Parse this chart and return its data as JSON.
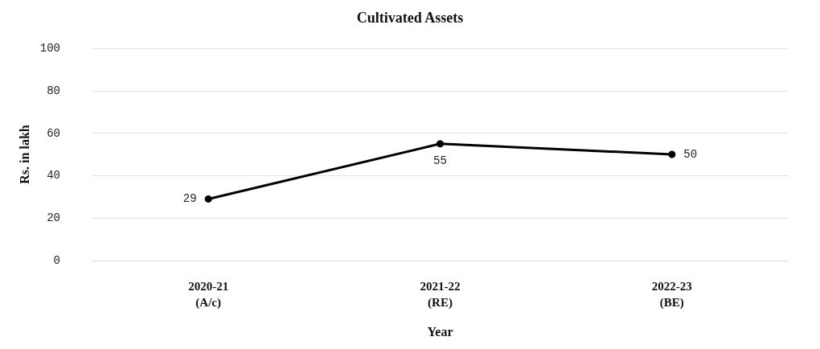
{
  "chart_data": {
    "type": "line",
    "title": "Cultivated Assets",
    "xlabel": "Year",
    "ylabel": "Rs. in lakh",
    "categories": [
      "2020-21\n(A/c)",
      "2021-22\n(RE)",
      "2022-23\n(BE)"
    ],
    "series": [
      {
        "color": "#000000",
        "values": [
          29,
          55,
          50
        ]
      }
    ],
    "ylim": [
      0,
      100
    ],
    "yticks": [
      0,
      20,
      40,
      60,
      80,
      100
    ],
    "grid": "y",
    "marker": "circle",
    "line_style": "solid",
    "data_labels": true
  }
}
